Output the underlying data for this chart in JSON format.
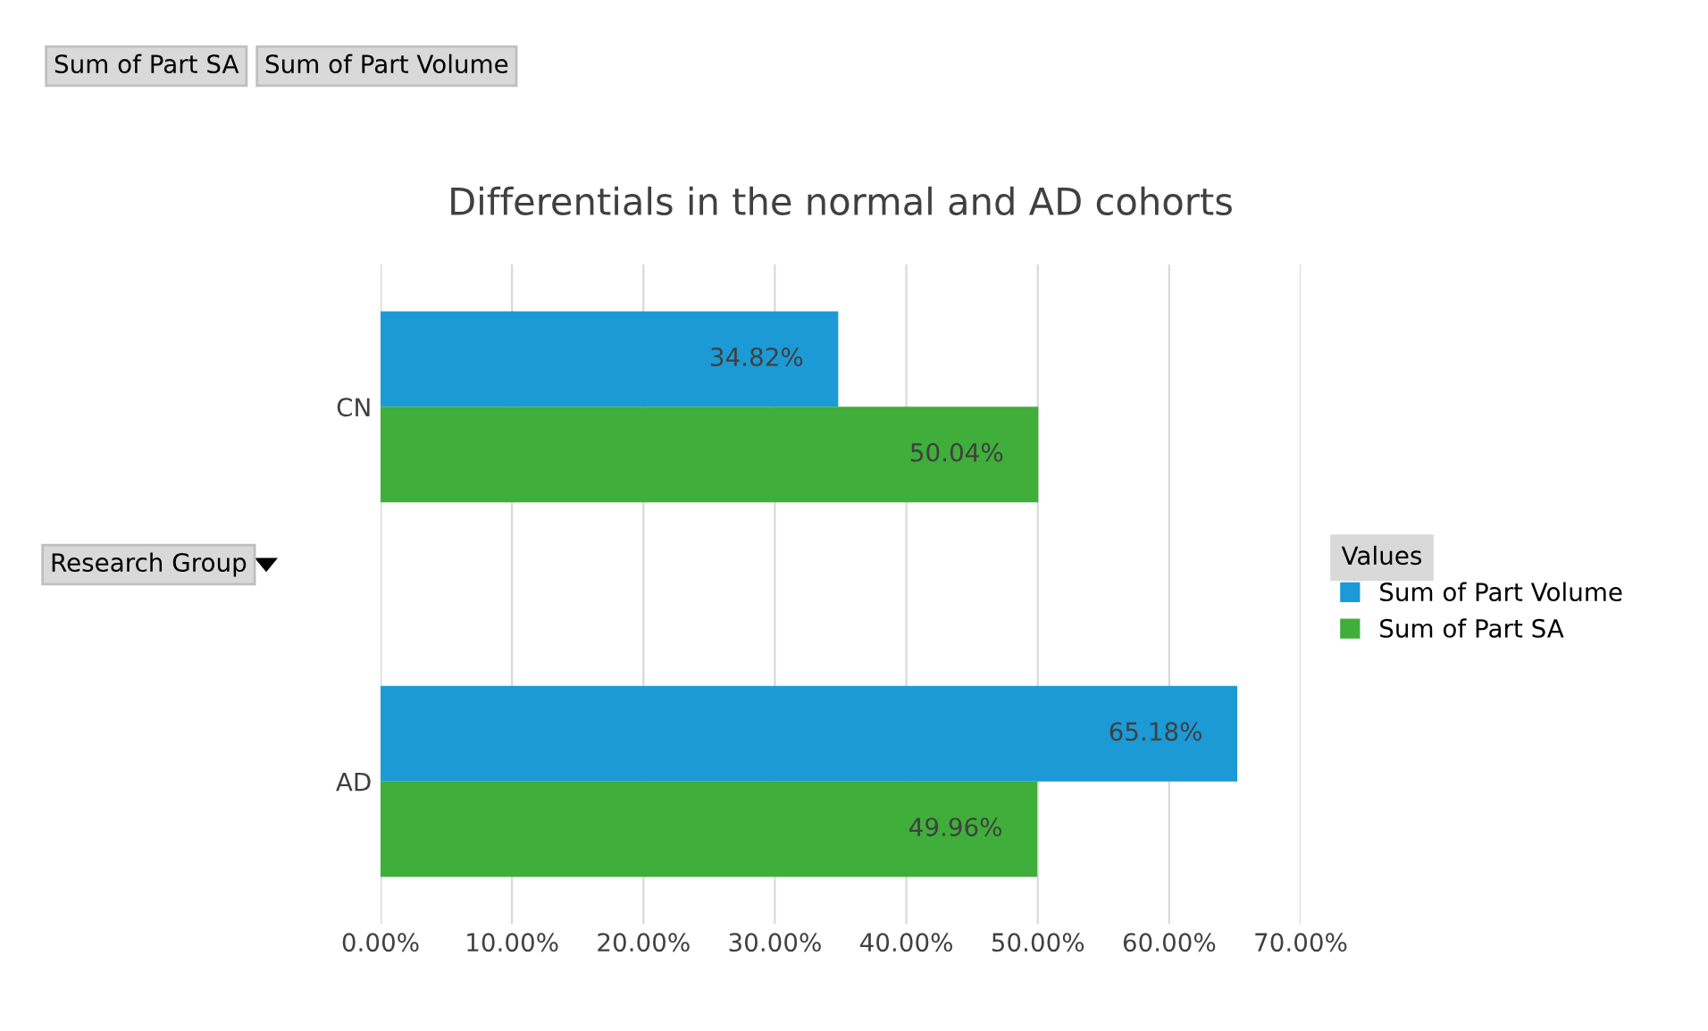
{
  "chart_data": {
    "type": "bar",
    "orientation": "horizontal",
    "title": "Differentials in the normal and AD cohorts",
    "legend_title": "Values",
    "categories": [
      "CN",
      "AD"
    ],
    "series": [
      {
        "name": "Sum of Part Volume",
        "color": "#1b9ad6",
        "values": [
          34.82,
          65.18
        ],
        "value_labels": [
          "34.82%",
          "65.18%"
        ]
      },
      {
        "name": "Sum of Part SA",
        "color": "#3fae3a",
        "values": [
          50.04,
          49.96
        ],
        "value_labels": [
          "50.04%",
          "49.96%"
        ]
      }
    ],
    "xlim": [
      0,
      70
    ],
    "xticks": [
      {
        "value": 0,
        "label": "0.00%"
      },
      {
        "value": 10,
        "label": "10.00%"
      },
      {
        "value": 20,
        "label": "20.00%"
      },
      {
        "value": 30,
        "label": "30.00%"
      },
      {
        "value": 40,
        "label": "40.00%"
      },
      {
        "value": 50,
        "label": "50.00%"
      },
      {
        "value": 60,
        "label": "60.00%"
      },
      {
        "value": 70,
        "label": "70.00%"
      }
    ],
    "grid": "x",
    "legend": "right",
    "annotations": [
      "Sum of Part SA",
      "Sum of Part Volume",
      "Research Group"
    ]
  }
}
